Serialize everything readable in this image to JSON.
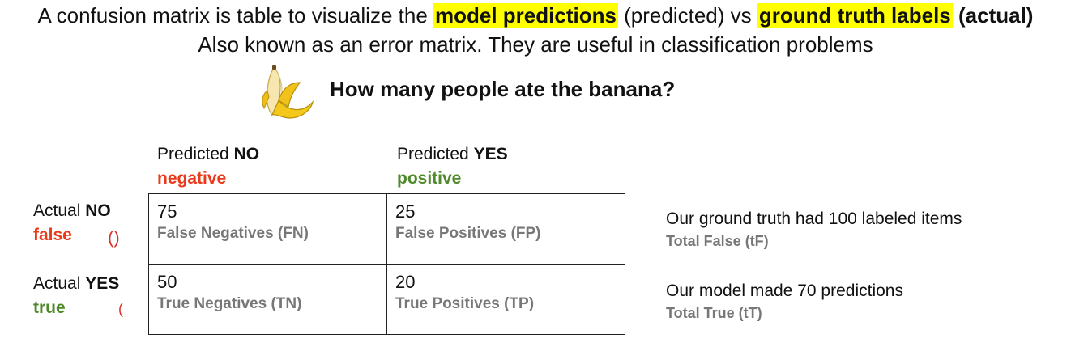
{
  "header": {
    "line1_a": "A confusion matrix is table to visualize the ",
    "line1_hl1": "model predictions",
    "line1_b": " (predicted) vs ",
    "line1_hl2": "ground truth labels",
    "line1_c": " (actual)",
    "line2": "Also known as an error matrix. They are useful in classification problems"
  },
  "question": "How many people ate the banana?",
  "columns": [
    {
      "prefix": "Predicted ",
      "strong": "NO",
      "sub": "negative",
      "sub_color": "#ea3a1a"
    },
    {
      "prefix": "Predicted ",
      "strong": "YES",
      "sub": "positive",
      "sub_color": "#4f8a2a"
    }
  ],
  "rows": [
    {
      "prefix": "Actual ",
      "strong": "NO",
      "sub": "false",
      "mark": "()"
    },
    {
      "prefix": "Actual ",
      "strong": "YES",
      "sub": "true",
      "mark": "("
    }
  ],
  "cells": [
    {
      "value": "75",
      "label": "False Negatives (FN)"
    },
    {
      "value": "25",
      "label": "False Positives (FP)"
    },
    {
      "value": "50",
      "label": "True Negatives (TN)"
    },
    {
      "value": "20",
      "label": "True Positives (TP)"
    }
  ],
  "side_notes": [
    {
      "text": "Our ground truth had 100 labeled items",
      "sub": "Total False (tF)"
    },
    {
      "text": "Our model made 70 predictions",
      "sub": "Total True (tT)"
    }
  ],
  "icons": {
    "banana": "banana-icon"
  },
  "colors": {
    "highlight": "#ffff00",
    "negative": "#ea3a1a",
    "positive": "#4f8a2a",
    "muted": "#777777"
  }
}
